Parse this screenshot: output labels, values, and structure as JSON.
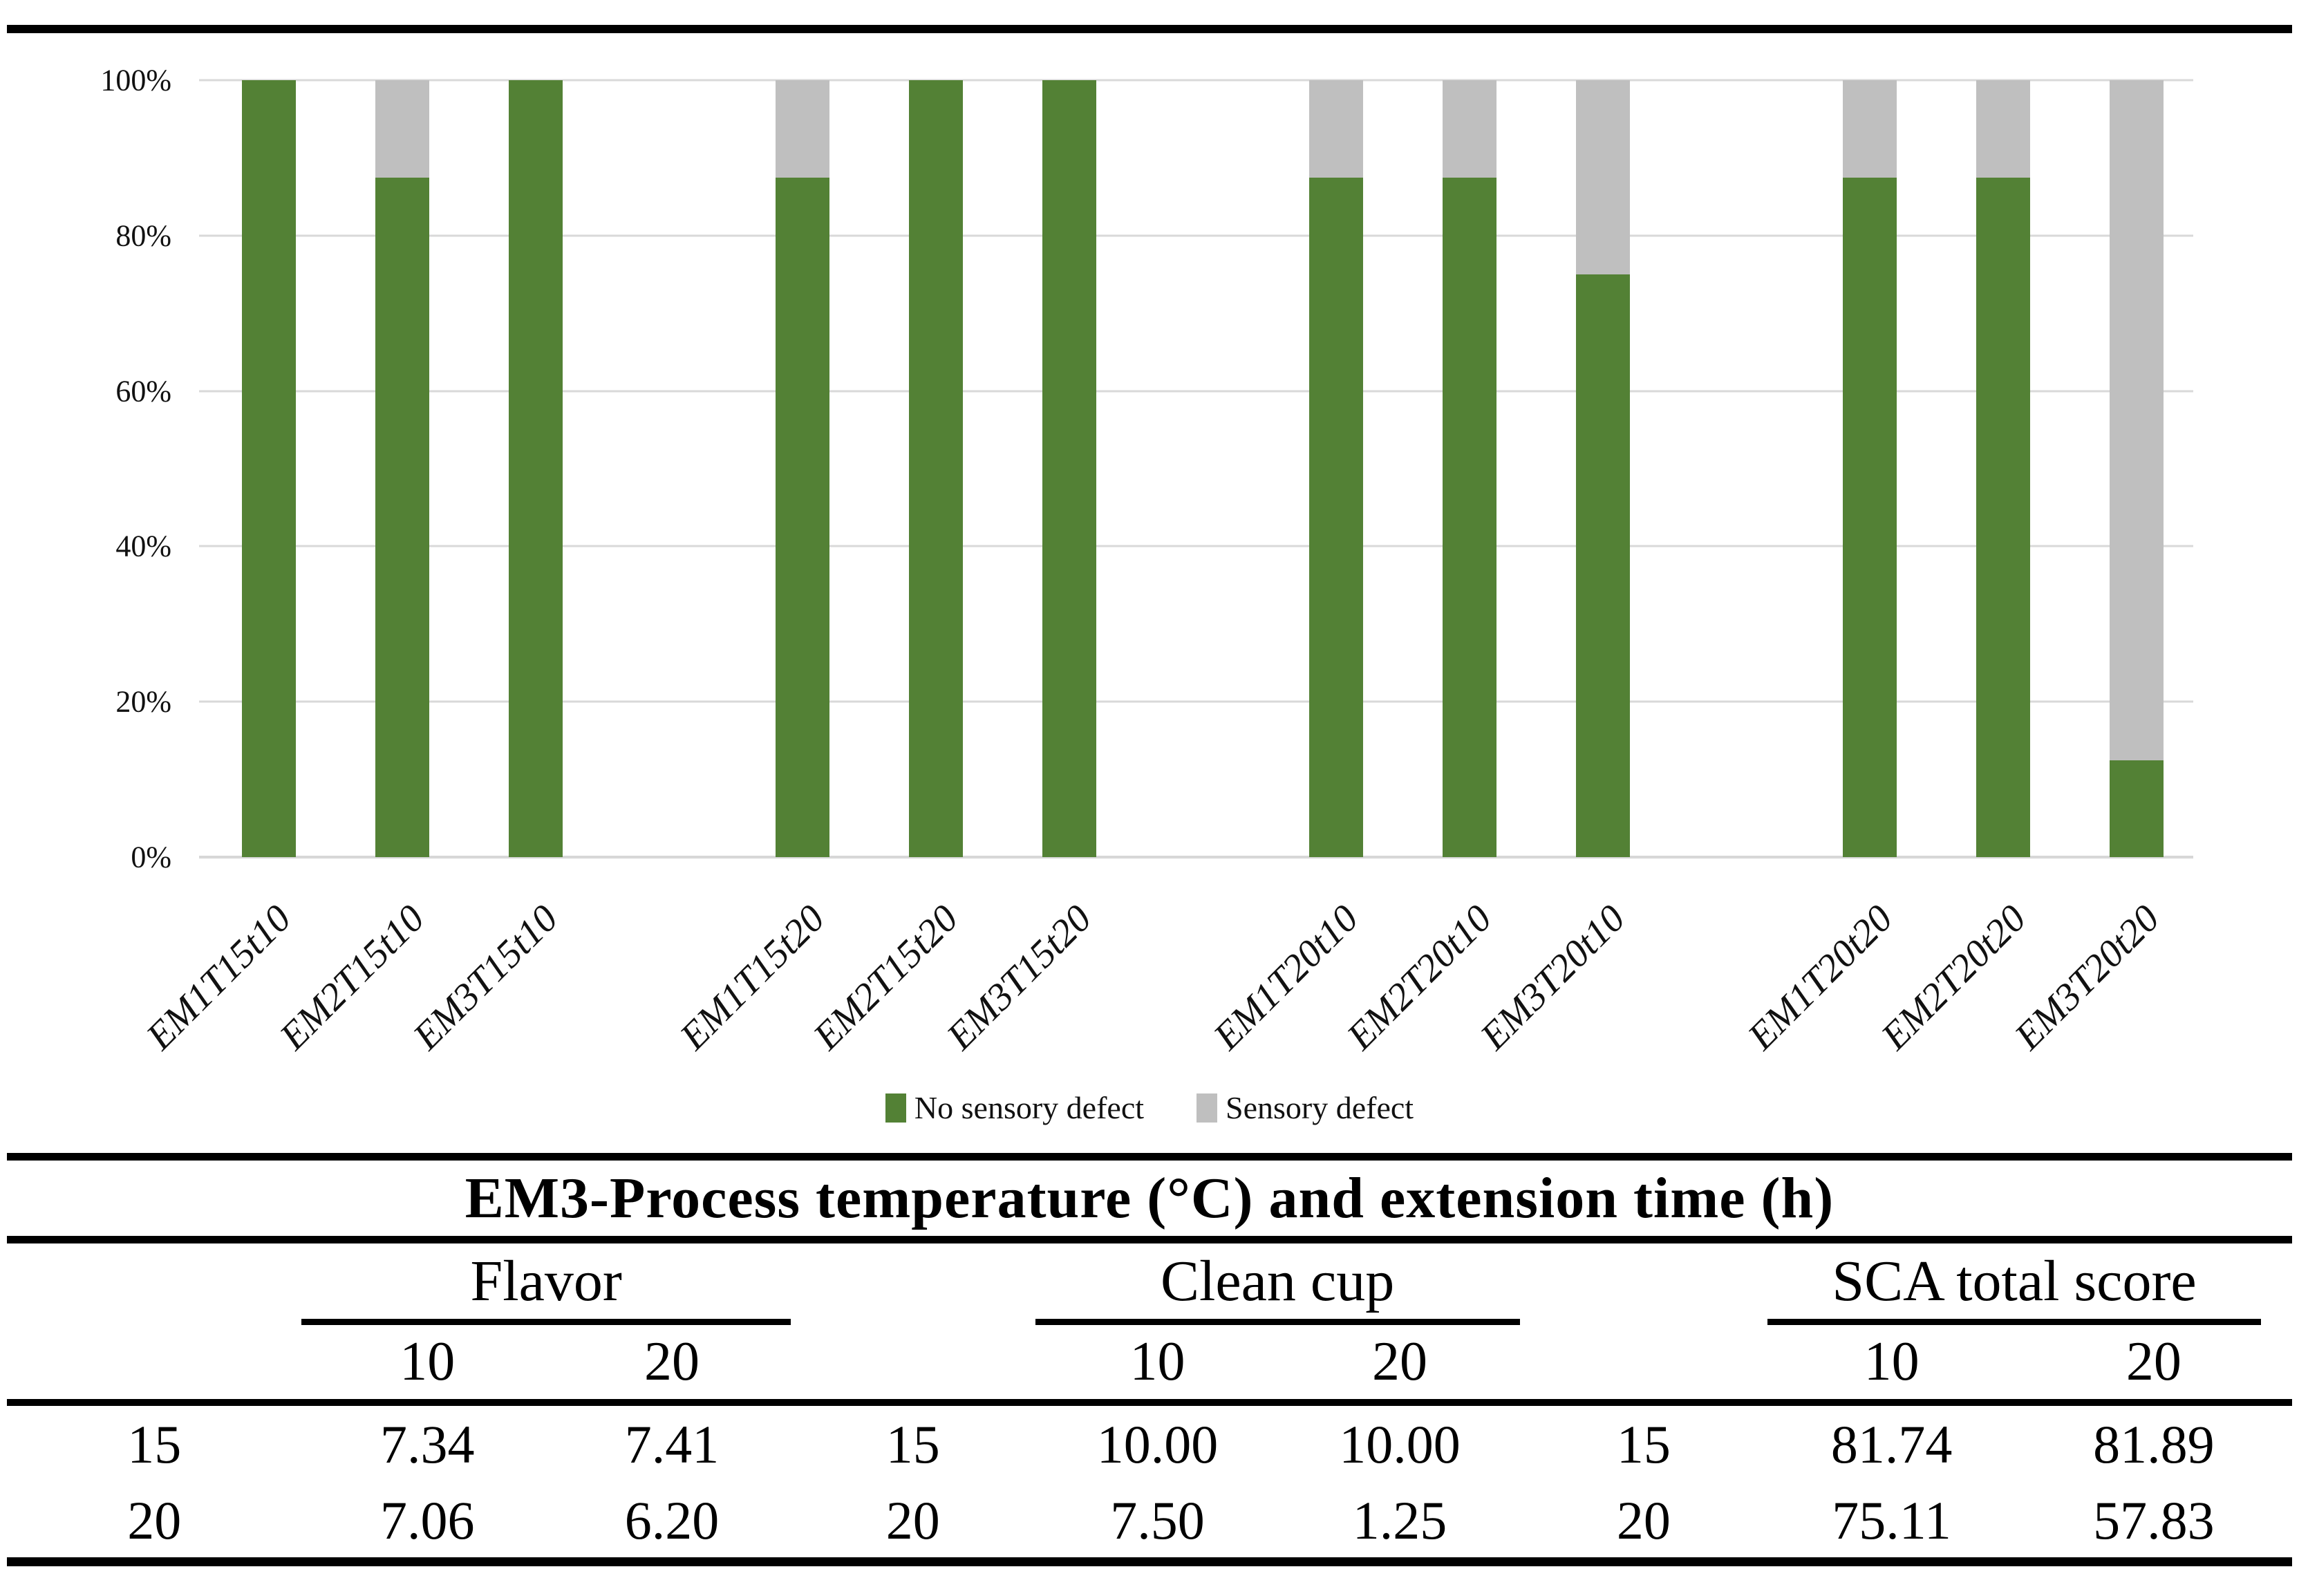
{
  "chart_data": {
    "type": "bar",
    "stacked": true,
    "units": "percent",
    "categories": [
      "EM1T15t10",
      "EM2T15t10",
      "EM3T15t10",
      "EM1T15t20",
      "EM2T15t20",
      "EM3T15t20",
      "EM1T20t10",
      "EM2T20t10",
      "EM3T20t10",
      "EM1T20t20",
      "EM2T20t20",
      "EM3T20t20"
    ],
    "group_size": 3,
    "series": [
      {
        "name": "No sensory defect",
        "color": "#538135",
        "values": [
          100,
          87.5,
          100,
          87.5,
          100,
          100,
          87.5,
          87.5,
          75,
          87.5,
          87.5,
          12.5
        ]
      },
      {
        "name": "Sensory defect",
        "color": "#BFBFBF",
        "values": [
          0,
          12.5,
          0,
          12.5,
          0,
          0,
          12.5,
          12.5,
          25,
          12.5,
          12.5,
          87.5
        ]
      }
    ],
    "y_ticks": [
      "100%",
      "80%",
      "60%",
      "40%",
      "20%",
      "0%"
    ],
    "ylim": [
      0,
      100
    ],
    "grid": true,
    "legend_position": "bottom"
  },
  "table": {
    "title": "EM3-Process temperature (°C) and extension time (h)",
    "groups": [
      {
        "label": "Flavor",
        "cols": [
          "10",
          "20"
        ]
      },
      {
        "label": "Clean cup",
        "cols": [
          "10",
          "20"
        ]
      },
      {
        "label": "SCA total score",
        "cols": [
          "10",
          "20"
        ]
      }
    ],
    "rows": [
      [
        "15",
        "7.34",
        "7.41",
        "15",
        "10.00",
        "10.00",
        "15",
        "81.74",
        "81.89"
      ],
      [
        "20",
        "7.06",
        "6.20",
        "20",
        "7.50",
        "1.25",
        "20",
        "75.11",
        "57.83"
      ]
    ]
  },
  "colors": {
    "bar_green": "#538135",
    "bar_gray": "#BFBFBF",
    "gridline": "#D9D9D9",
    "axis_line": "#CFCFCF",
    "rule": "#000000"
  }
}
